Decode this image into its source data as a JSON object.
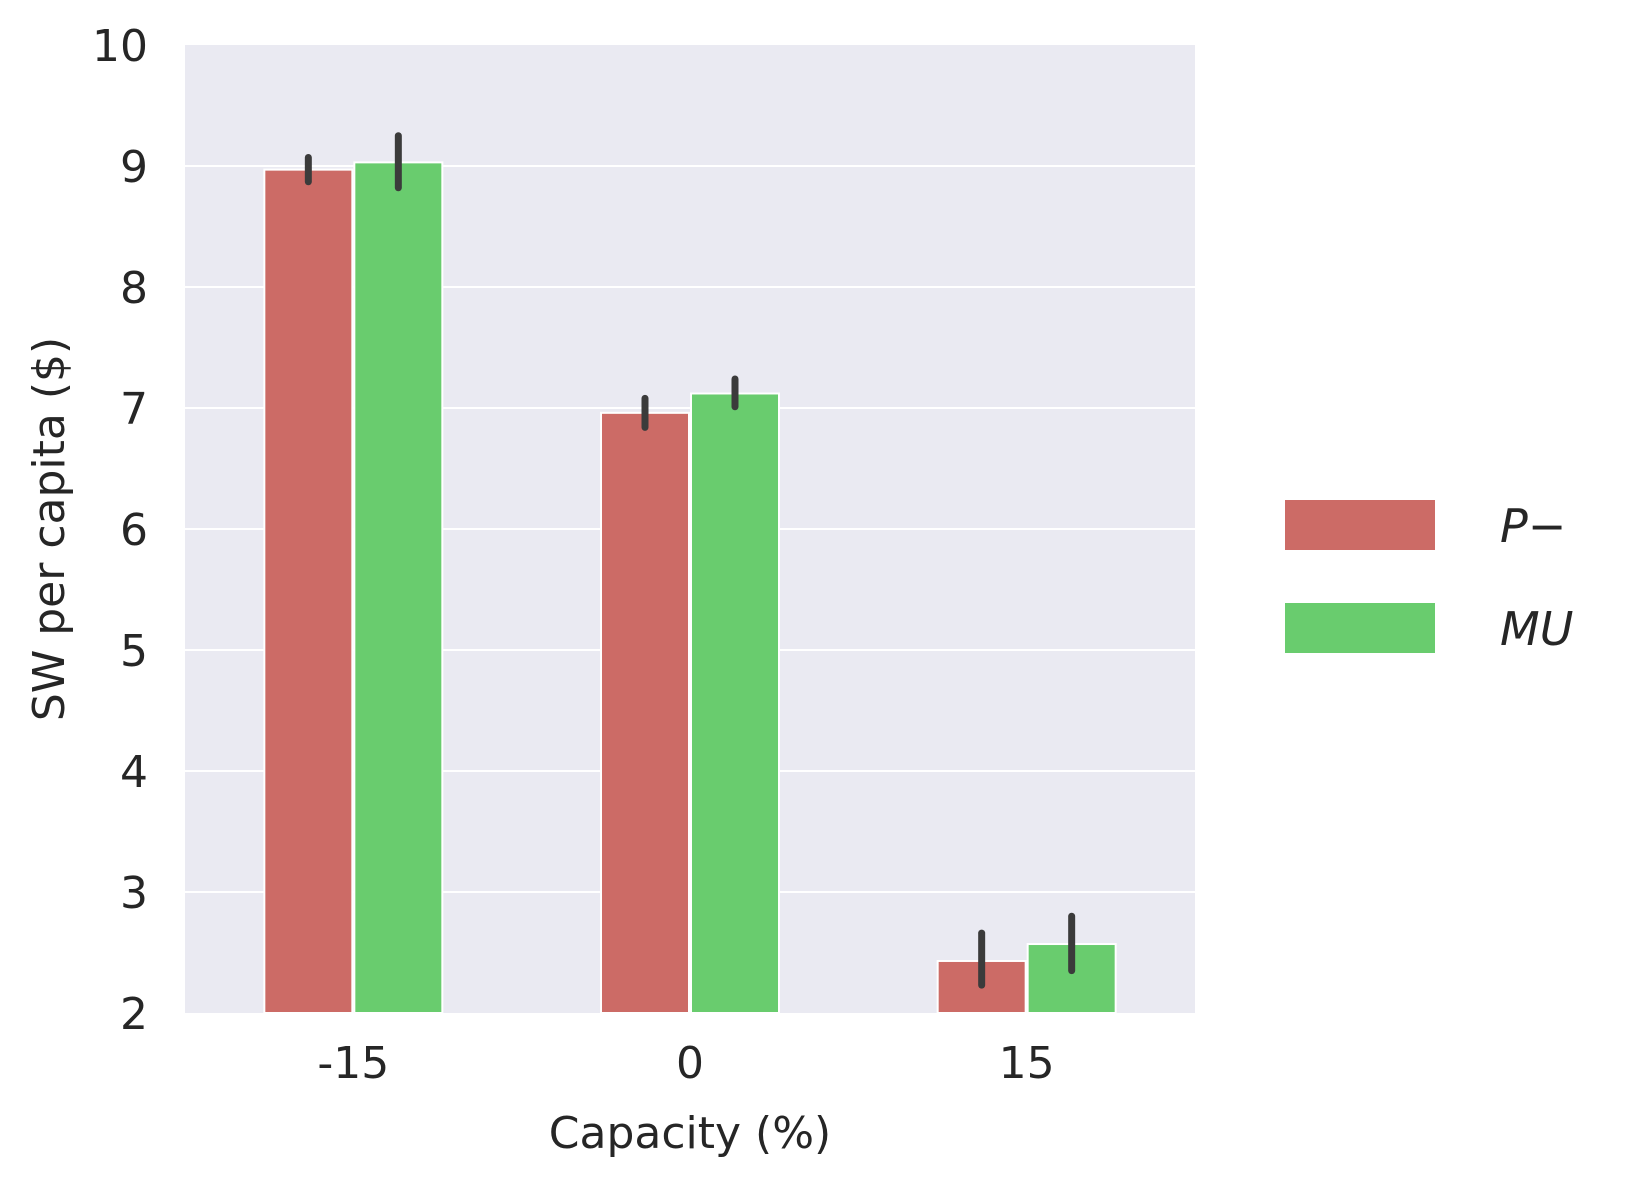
{
  "chart_data": {
    "type": "bar",
    "categories": [
      "-15",
      "0",
      "15"
    ],
    "series": [
      {
        "name": "P−",
        "color": "#cc6b66",
        "values": [
          8.97,
          6.96,
          2.43
        ],
        "err_low": [
          8.87,
          6.84,
          2.23
        ],
        "err_high": [
          9.07,
          7.08,
          2.66
        ]
      },
      {
        "name": "MU",
        "color": "#69cc6e",
        "values": [
          9.03,
          7.12,
          2.57
        ],
        "err_low": [
          8.82,
          7.01,
          2.35
        ],
        "err_high": [
          9.25,
          7.24,
          2.8
        ]
      }
    ],
    "xlabel": "Capacity (%)",
    "ylabel": "SW per capita ($)",
    "ylim": [
      2,
      10
    ],
    "yticks": [
      "2",
      "3",
      "4",
      "5",
      "6",
      "7",
      "8",
      "9",
      "10"
    ],
    "grid": true,
    "legend_position": "right",
    "colors": {
      "background": "#eaeaf2",
      "grid": "#ffffff",
      "error_bar": "#3b3b3b"
    }
  }
}
